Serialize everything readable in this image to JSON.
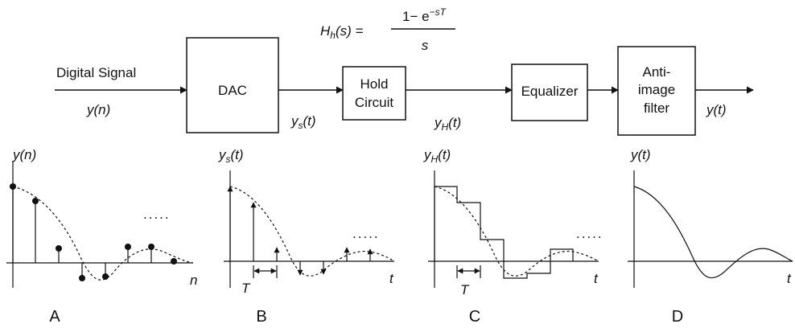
{
  "diagram": {
    "input_label": "Digital Signal",
    "input_var": "y(n)",
    "transfer_function": {
      "lhs": "H",
      "lhs_sub": "h",
      "lhs_arg": "(s) =",
      "num_prefix": "1− e",
      "num_exp": "−sT",
      "den": "s"
    },
    "blocks": {
      "dac": "DAC",
      "hold_line1": "Hold",
      "hold_line2": "Circuit",
      "equalizer": "Equalizer",
      "anti_line1": "Anti-",
      "anti_line2": "image",
      "anti_line3": "filter"
    },
    "signals": {
      "ys": {
        "base": "y",
        "sub": "s",
        "arg": "(t)"
      },
      "yh": {
        "base": "y",
        "sub": "H",
        "arg": "(t)"
      },
      "yt": "y(t)"
    },
    "plots": {
      "a": {
        "ylabel": "y(n)",
        "xlabel": "n",
        "caption": "A",
        "dots": "....."
      },
      "b": {
        "ylabel_base": "y",
        "ylabel_sub": "s",
        "ylabel_arg": "(t)",
        "xlabel": "t",
        "period": "T",
        "caption": "B",
        "dots": "....."
      },
      "c": {
        "ylabel_base": "y",
        "ylabel_sub": "H",
        "ylabel_arg": "(t)",
        "xlabel": "t",
        "period": "T",
        "caption": "C",
        "dots": "....."
      },
      "d": {
        "ylabel": "y(t)",
        "xlabel": "t",
        "caption": "D"
      }
    }
  }
}
